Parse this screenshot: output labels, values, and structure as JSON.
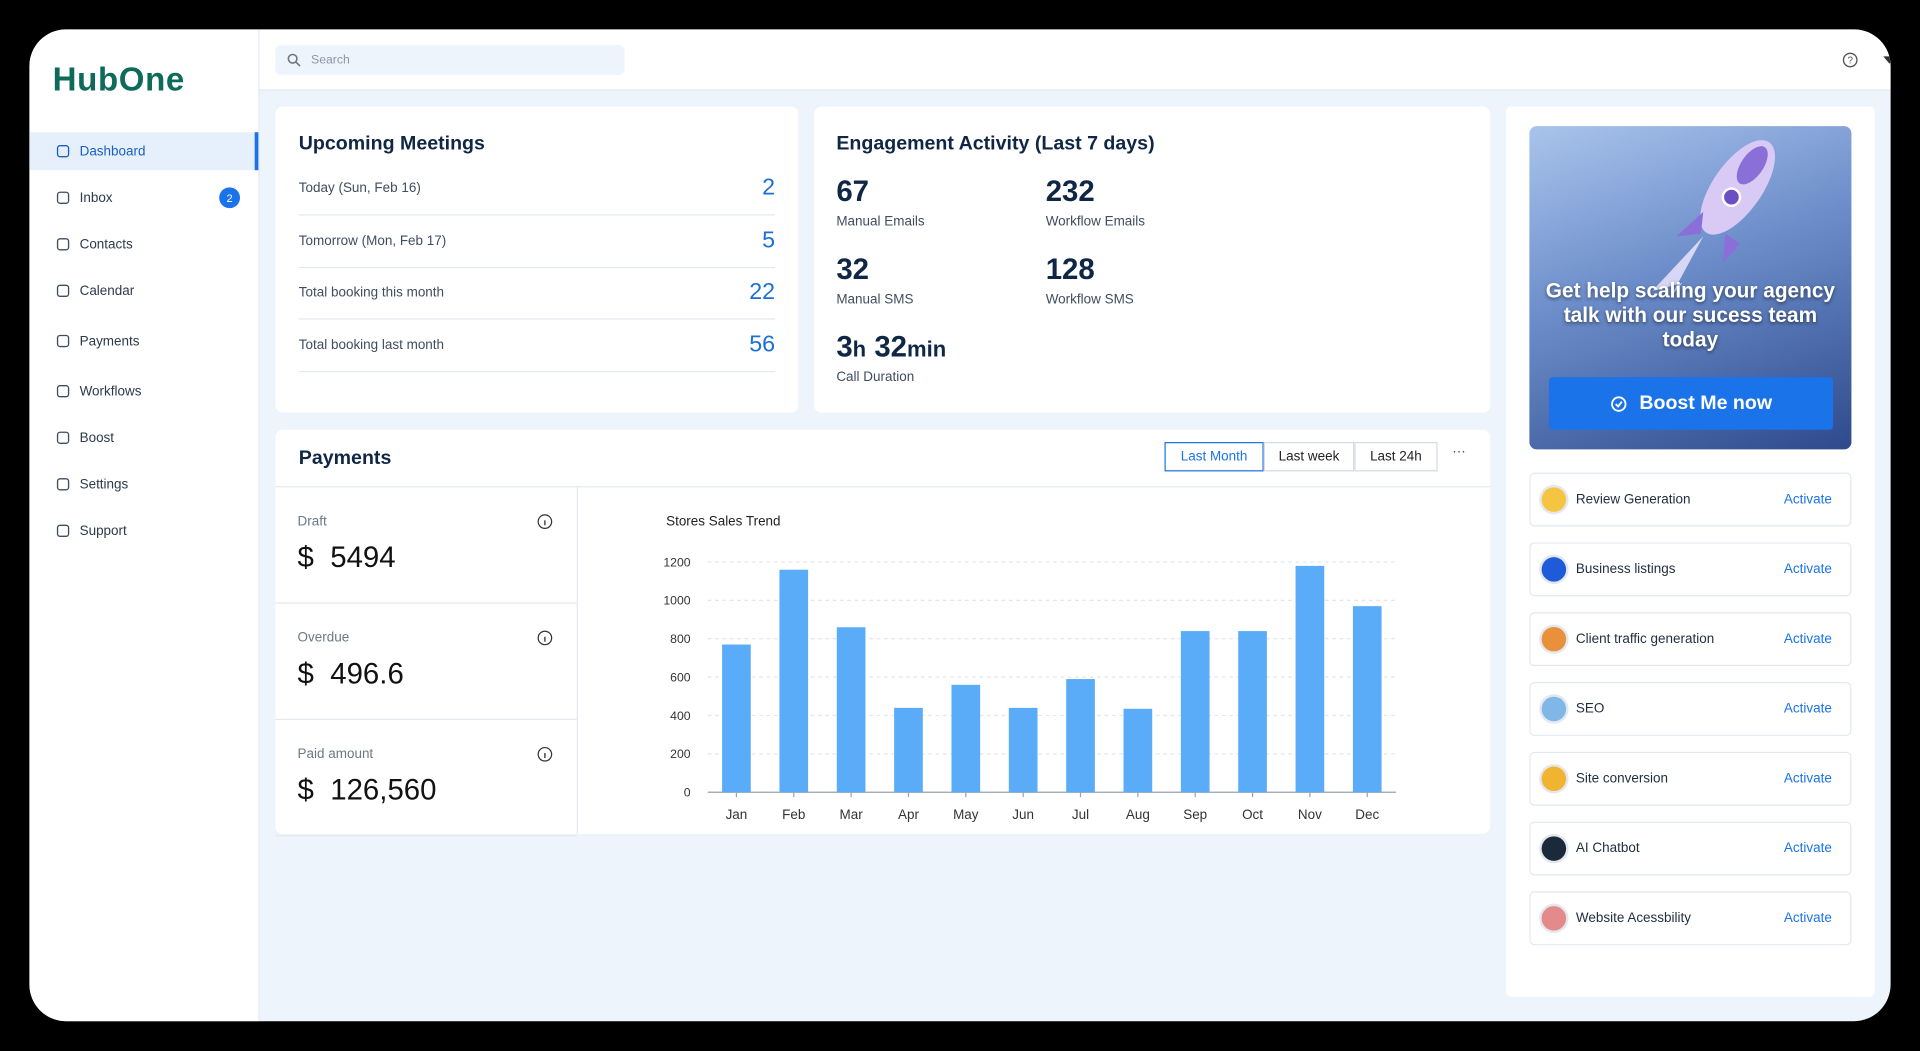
{
  "logo": "HubOne",
  "search_placeholder": "Search",
  "sidebar": {
    "items": [
      {
        "label": "Dashboard"
      },
      {
        "label": "Inbox",
        "badge": 2
      },
      {
        "label": "Contacts"
      },
      {
        "label": "Calendar"
      },
      {
        "label": "Payments"
      },
      {
        "label": "Workflows"
      },
      {
        "label": "Boost"
      },
      {
        "label": "Settings"
      },
      {
        "label": "Support"
      }
    ]
  },
  "upcoming_meetings": {
    "title": "Upcoming Meetings",
    "rows": [
      {
        "label": "Today (Sun, Feb 16)",
        "value": 2
      },
      {
        "label": "Tomorrow (Mon, Feb 17)",
        "value": 5
      },
      {
        "label": "Total booking this month",
        "value": 22
      },
      {
        "label": "Total booking last month",
        "value": 56
      }
    ]
  },
  "engagement": {
    "title": "Engagement Activity (Last 7 days)",
    "stats": [
      {
        "value": 67,
        "label": "Manual Emails"
      },
      {
        "value": 232,
        "label": "Workflow Emails"
      },
      {
        "value": 32,
        "label": "Manual SMS"
      },
      {
        "value": 128,
        "label": "Workflow SMS"
      }
    ],
    "call_duration": {
      "hours": 3,
      "hours_unit": "h",
      "minutes": 32,
      "minutes_unit": "min",
      "label": "Call Duration"
    }
  },
  "payments": {
    "title": "Payments",
    "filters": [
      "Last Month",
      "Last week",
      "Last 24h"
    ],
    "active_filter": 0,
    "summary": [
      {
        "label": "Draft",
        "currency": "$",
        "value": 5494
      },
      {
        "label": "Overdue",
        "currency": "$",
        "value": 496.6
      },
      {
        "label": "Paid amount",
        "currency": "$",
        "value": 126560,
        "value_label": "126,560"
      }
    ],
    "chart": {
      "type": "bar",
      "title": "Stores Sales Trend",
      "categories": [
        "Jan",
        "Feb",
        "Mar",
        "Apr",
        "May",
        "Jun",
        "Jul",
        "Aug",
        "Sep",
        "Oct",
        "Nov",
        "Dec"
      ],
      "values": [
        770,
        1160,
        860,
        440,
        560,
        440,
        590,
        435,
        840,
        840,
        1180,
        970
      ],
      "color": "#5aabf8",
      "ylim": [
        0,
        1200
      ],
      "yticks": [
        0,
        200,
        400,
        600,
        800,
        1000,
        1200
      ],
      "grid": true
    }
  },
  "promo": {
    "text": "Get help scaling your agency talk with our sucess team today",
    "button": "Boost Me now"
  },
  "services": [
    {
      "name": "Review Generation",
      "action": "Activate",
      "color": "#f5c542"
    },
    {
      "name": "Business listings",
      "action": "Activate",
      "color": "#1e5bd8"
    },
    {
      "name": "Client traffic generation",
      "action": "Activate",
      "color": "#e8913a"
    },
    {
      "name": "SEO",
      "action": "Activate",
      "color": "#7fb8e8"
    },
    {
      "name": "Site conversion",
      "action": "Activate",
      "color": "#f0b430"
    },
    {
      "name": "AI Chatbot",
      "action": "Activate",
      "color": "#1b2a3a"
    },
    {
      "name": "Website Acessbility",
      "action": "Activate",
      "color": "#e58a8a"
    }
  ]
}
